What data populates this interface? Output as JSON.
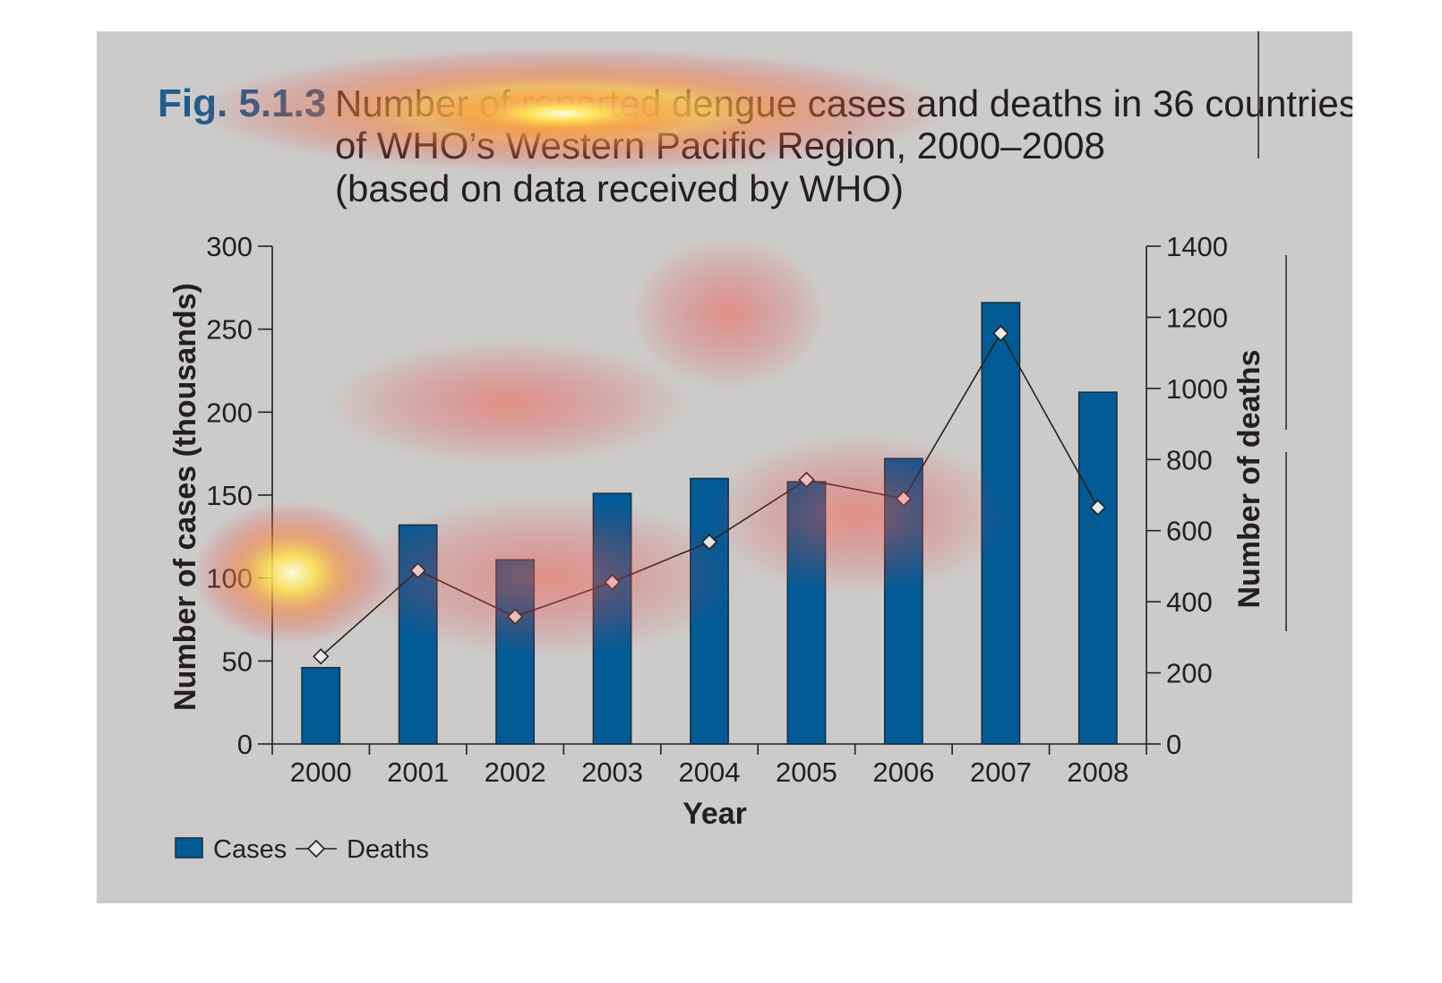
{
  "figure": {
    "label": "Fig. 5.1.3",
    "title_lines": [
      "Number of reported dengue cases and deaths in 36 countries",
      "of WHO’s Western Pacific Region, 2000–2008",
      "(based on data received by WHO)"
    ]
  },
  "legend": {
    "cases_label": "Cases",
    "deaths_label": "Deaths"
  },
  "colors": {
    "panel_background": "#cccbca",
    "bar_fill": "#005b96",
    "figure_label": "#1f5e8c",
    "text": "#231f20"
  },
  "chart_data": {
    "type": "bar",
    "title": "Number of reported dengue cases and deaths in 36 countries of WHO’s Western Pacific Region, 2000–2008 (based on data received by WHO)",
    "categories": [
      "2000",
      "2001",
      "2002",
      "2003",
      "2004",
      "2005",
      "2006",
      "2007",
      "2008"
    ],
    "xlabel": "Year",
    "ylabel": "Number of cases (thousands)",
    "ylabel_right": "Number of deaths",
    "ylim": [
      0,
      300
    ],
    "ylim_right": [
      0,
      1400
    ],
    "yticks": [
      0,
      50,
      100,
      150,
      200,
      250,
      300
    ],
    "yticks_right": [
      0,
      200,
      400,
      600,
      800,
      1000,
      1200,
      1400
    ],
    "grid": false,
    "legend_position": "bottom-left",
    "series": [
      {
        "name": "Cases",
        "kind": "bar",
        "axis": "left",
        "values": [
          46,
          132,
          111,
          151,
          160,
          158,
          172,
          266,
          212
        ]
      },
      {
        "name": "Deaths",
        "kind": "line",
        "marker": "diamond",
        "axis": "right",
        "values": [
          246,
          488,
          358,
          455,
          568,
          743,
          690,
          1155,
          665
        ]
      }
    ]
  }
}
